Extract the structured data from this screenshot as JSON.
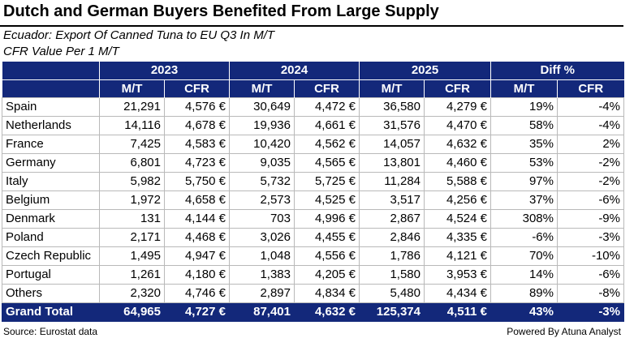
{
  "title": "Dutch and German Buyers Benefited From Large Supply",
  "subtitle": "Ecuador: Export Of Canned Tuna to EU Q3 In M/T",
  "subtitle2": "CFR Value Per 1 M/T",
  "table": {
    "year_headers": [
      "2023",
      "2024",
      "2025",
      "Diff %"
    ],
    "sub_headers": [
      "M/T",
      "CFR",
      "M/T",
      "CFR",
      "M/T",
      "CFR",
      "M/T",
      "CFR"
    ],
    "rows": [
      {
        "country": "Spain",
        "cells": [
          "21,291",
          "4,576 €",
          "30,649",
          "4,472 €",
          "36,580",
          "4,279 €",
          "19%",
          "-4%"
        ]
      },
      {
        "country": "Netherlands",
        "cells": [
          "14,116",
          "4,678 €",
          "19,936",
          "4,661 €",
          "31,576",
          "4,470 €",
          "58%",
          "-4%"
        ]
      },
      {
        "country": "France",
        "cells": [
          "7,425",
          "4,583 €",
          "10,420",
          "4,562 €",
          "14,057",
          "4,632 €",
          "35%",
          "2%"
        ]
      },
      {
        "country": "Germany",
        "cells": [
          "6,801",
          "4,723 €",
          "9,035",
          "4,565 €",
          "13,801",
          "4,460 €",
          "53%",
          "-2%"
        ]
      },
      {
        "country": "Italy",
        "cells": [
          "5,982",
          "5,750 €",
          "5,732",
          "5,725 €",
          "11,284",
          "5,588 €",
          "97%",
          "-2%"
        ]
      },
      {
        "country": "Belgium",
        "cells": [
          "1,972",
          "4,658 €",
          "2,573",
          "4,525 €",
          "3,517",
          "4,256 €",
          "37%",
          "-6%"
        ]
      },
      {
        "country": "Denmark",
        "cells": [
          "131",
          "4,144 €",
          "703",
          "4,996 €",
          "2,867",
          "4,524 €",
          "308%",
          "-9%"
        ]
      },
      {
        "country": "Poland",
        "cells": [
          "2,171",
          "4,468 €",
          "3,026",
          "4,455 €",
          "2,846",
          "4,335 €",
          "-6%",
          "-3%"
        ]
      },
      {
        "country": "Czech Republic",
        "cells": [
          "1,495",
          "4,947 €",
          "1,048",
          "4,556 €",
          "1,786",
          "4,121 €",
          "70%",
          "-10%"
        ]
      },
      {
        "country": "Portugal",
        "cells": [
          "1,261",
          "4,180 €",
          "1,383",
          "4,205 €",
          "1,580",
          "3,953 €",
          "14%",
          "-6%"
        ]
      },
      {
        "country": "Others",
        "cells": [
          "2,320",
          "4,746 €",
          "2,897",
          "4,834 €",
          "5,480",
          "4,434 €",
          "89%",
          "-8%"
        ]
      }
    ],
    "total": {
      "country": "Grand Total",
      "cells": [
        "64,965",
        "4,727 €",
        "87,401",
        "4,632 €",
        "125,374",
        "4,511 €",
        "43%",
        "-3%"
      ]
    }
  },
  "footer": {
    "source": "Source: Eurostat  data",
    "powered": "Powered By Atuna Analyst"
  },
  "colors": {
    "header_bg": "#13287a",
    "header_text": "#ffffff"
  }
}
